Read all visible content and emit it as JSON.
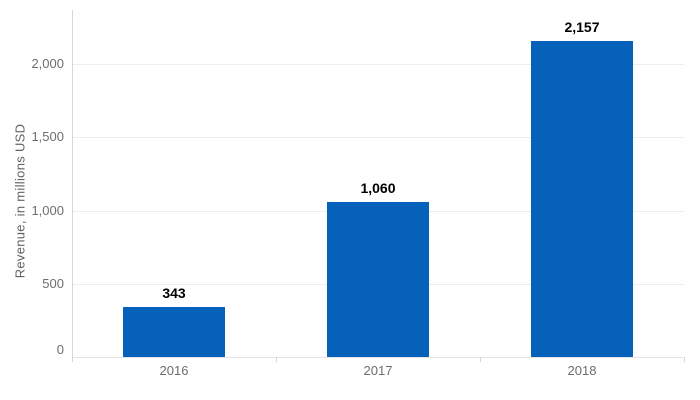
{
  "chart_data": {
    "type": "bar",
    "title": "",
    "categories": [
      "2016",
      "2017",
      "2018"
    ],
    "values": [
      343,
      1060,
      2157
    ],
    "value_labels": [
      "343",
      "1,060",
      "2,157"
    ],
    "xlabel": "",
    "ylabel": "Revenue, in millions USD",
    "ylim": [
      0,
      2370
    ],
    "yticks": [
      0,
      500,
      1000,
      1500,
      2000
    ],
    "ytick_labels": [
      "0",
      "500",
      "1,000",
      "1,500",
      "2,000"
    ],
    "grid": true,
    "legend": false,
    "colors": {
      "bar": "#0561ba",
      "gridline": "#ececec",
      "baseline": "#e3e3e3",
      "axis_line": "#d6d6d6",
      "tick_label": "#6d6d6d",
      "axis_title": "#5f6368",
      "data_label": "#000000",
      "background": "#ffffff"
    }
  }
}
